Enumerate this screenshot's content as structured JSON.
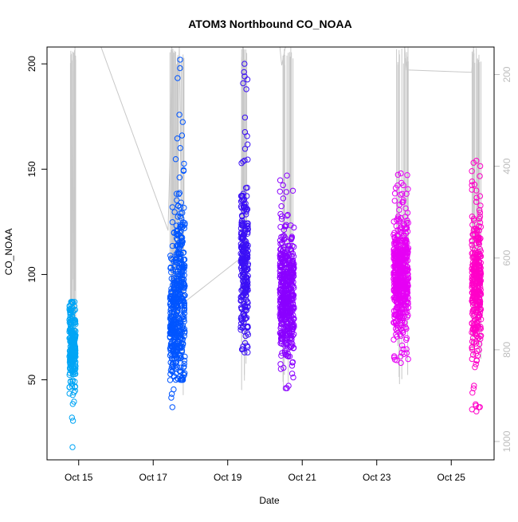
{
  "chart_data": {
    "type": "scatter",
    "title": "ATOM3 Northbound CO_NOAA",
    "xlabel": "Date",
    "ylabel": "CO_NOAA",
    "ylim": [
      12,
      208
    ],
    "right_axis": {
      "ylim": [
        1040,
        140
      ],
      "ticks": [
        200,
        400,
        600,
        800,
        1000
      ],
      "color": "#bdbdbd",
      "reversed": true
    },
    "x_ticks": [
      {
        "day": 15,
        "label": "Oct 15"
      },
      {
        "day": 17,
        "label": "Oct 17"
      },
      {
        "day": 19,
        "label": "Oct 19"
      },
      {
        "day": 21,
        "label": "Oct 21"
      },
      {
        "day": 23,
        "label": "Oct 23"
      },
      {
        "day": 25,
        "label": "Oct 25"
      }
    ],
    "xlim_days": [
      14.15,
      26.15
    ],
    "y_ticks": [
      50,
      100,
      150,
      200
    ],
    "grid": false,
    "series": [
      {
        "color": "#00a5f5",
        "segments": [
          {
            "day_start": 14.75,
            "day_end": 14.92,
            "y_lo": 18,
            "y_hi": 87,
            "center": 67
          }
        ]
      },
      {
        "color": "#0055ff",
        "segments": [
          {
            "day_start": 17.45,
            "day_end": 17.58,
            "y_lo": 37,
            "y_hi": 132,
            "center": 75
          },
          {
            "day_start": 17.6,
            "day_end": 17.85,
            "y_lo": 50,
            "y_hi": 202,
            "center": 90
          }
        ]
      },
      {
        "color": "#3b10f5",
        "segments": [
          {
            "day_start": 19.35,
            "day_end": 19.55,
            "y_lo": 63,
            "y_hi": 200,
            "center": 105
          }
        ]
      },
      {
        "color": "#8a00ff",
        "segments": [
          {
            "day_start": 20.4,
            "day_end": 20.78,
            "y_lo": 46,
            "y_hi": 147,
            "center": 90
          }
        ]
      },
      {
        "color": "#e600f5",
        "segments": [
          {
            "day_start": 23.45,
            "day_end": 23.85,
            "y_lo": 58,
            "y_hi": 148,
            "center": 100
          }
        ]
      },
      {
        "color": "#ff00c8",
        "segments": [
          {
            "day_start": 25.55,
            "day_end": 25.8,
            "y_lo": 35,
            "y_hi": 154,
            "center": 95
          }
        ]
      }
    ],
    "altitude_trace": {
      "color": "#c8c8c8",
      "points": [
        [
          14.78,
          800
        ],
        [
          14.8,
          160
        ],
        [
          14.82,
          760
        ],
        [
          14.84,
          150
        ],
        [
          14.86,
          790
        ],
        [
          14.9,
          140
        ],
        [
          15.6,
          140
        ],
        [
          17.4,
          540
        ],
        [
          17.45,
          380
        ],
        [
          17.5,
          140
        ],
        [
          17.55,
          620
        ],
        [
          17.7,
          140
        ],
        [
          17.78,
          700
        ],
        [
          19.35,
          600
        ],
        [
          19.4,
          140
        ],
        [
          19.55,
          140
        ],
        [
          20.4,
          140
        ],
        [
          20.45,
          180
        ],
        [
          20.55,
          140
        ],
        [
          20.7,
          140
        ],
        [
          23.45,
          140
        ],
        [
          23.6,
          140
        ],
        [
          23.75,
          140
        ],
        [
          23.8,
          190
        ],
        [
          25.55,
          195
        ],
        [
          25.6,
          140
        ]
      ]
    }
  }
}
